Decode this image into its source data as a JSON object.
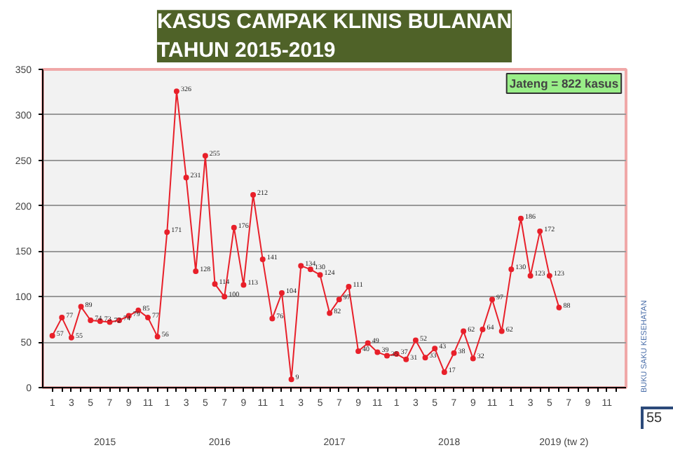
{
  "chart_data": {
    "type": "line",
    "title": "KASUS CAMPAK KLINIS BULANAN\nTAHUN 2015-2019",
    "categories": [
      "1",
      null,
      "3",
      null,
      "5",
      null,
      "7",
      null,
      "9",
      null,
      "11",
      null,
      "1",
      null,
      "3",
      null,
      "5",
      null,
      "7",
      null,
      "9",
      null,
      "11",
      null,
      "1",
      null,
      "3",
      null,
      "5",
      null,
      "7",
      null,
      "9",
      null,
      "11",
      null,
      "1",
      null,
      "3",
      null,
      "5",
      null,
      "7",
      null,
      "9",
      null,
      "11",
      null,
      "1",
      null,
      "3",
      null,
      "5",
      null,
      "7",
      null,
      "9",
      null,
      "11",
      null
    ],
    "series": [
      {
        "color": "#e8202a",
        "values": [
          57,
          77,
          55,
          89,
          74,
          73,
          72,
          74,
          79,
          85,
          77,
          56,
          171,
          326,
          231,
          128,
          255,
          114,
          100,
          176,
          113,
          212,
          141,
          76,
          104,
          9,
          134,
          130,
          124,
          82,
          97,
          111,
          40,
          49,
          39,
          35,
          37,
          31,
          52,
          33,
          43,
          17,
          38,
          62,
          32,
          64,
          97,
          62,
          130,
          186,
          123,
          172,
          123,
          88,
          null,
          null,
          null,
          null,
          null,
          null
        ]
      }
    ],
    "ylim": [
      0,
      350
    ],
    "yticks": [
      0,
      50,
      100,
      150,
      200,
      250,
      300,
      350
    ],
    "grid": "y",
    "marker": "circle",
    "line_style": "solid",
    "data_labels": true,
    "annotations": [
      "2015",
      "2016",
      "2017",
      "2018",
      "2019 (tw 2)",
      "Jateng = 822 kasus",
      "BUKU SAKU KESEHATAN",
      "55"
    ]
  }
}
